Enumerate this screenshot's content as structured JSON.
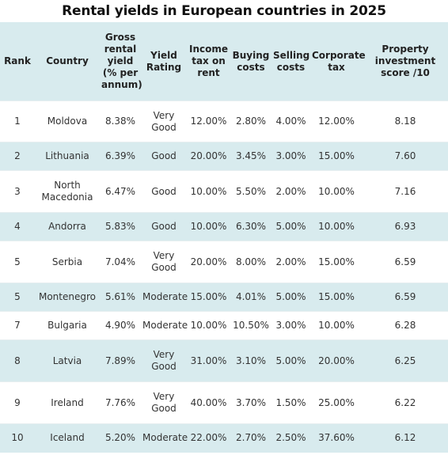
{
  "title": "Rental yields in European countries in 2025",
  "table": {
    "columns": [
      "Rank",
      "Country",
      "Gross rental yield (% per annum)",
      "Yield Rating",
      "Income tax on rent",
      "Buying costs",
      "Selling costs",
      "Corporate tax",
      "Property investment score /10"
    ],
    "rows": [
      [
        "1",
        "Moldova",
        "8.38%",
        "Very Good",
        "12.00%",
        "2.80%",
        "4.00%",
        "12.00%",
        "8.18"
      ],
      [
        "2",
        "Lithuania",
        "6.39%",
        "Good",
        "20.00%",
        "3.45%",
        "3.00%",
        "15.00%",
        "7.60"
      ],
      [
        "3",
        "North Macedonia",
        "6.47%",
        "Good",
        "10.00%",
        "5.50%",
        "2.00%",
        "10.00%",
        "7.16"
      ],
      [
        "4",
        "Andorra",
        "5.83%",
        "Good",
        "10.00%",
        "6.30%",
        "5.00%",
        "10.00%",
        "6.93"
      ],
      [
        "5",
        "Serbia",
        "7.04%",
        "Very Good",
        "20.00%",
        "8.00%",
        "2.00%",
        "15.00%",
        "6.59"
      ],
      [
        "5",
        "Montenegro",
        "5.61%",
        "Moderate",
        "15.00%",
        "4.01%",
        "5.00%",
        "15.00%",
        "6.59"
      ],
      [
        "7",
        "Bulgaria",
        "4.90%",
        "Moderate",
        "10.00%",
        "10.50%",
        "3.00%",
        "10.00%",
        "6.28"
      ],
      [
        "8",
        "Latvia",
        "7.89%",
        "Very Good",
        "31.00%",
        "3.10%",
        "5.00%",
        "20.00%",
        "6.25"
      ],
      [
        "9",
        "Ireland",
        "7.76%",
        "Very Good",
        "40.00%",
        "3.70%",
        "1.50%",
        "25.00%",
        "6.22"
      ],
      [
        "10",
        "Iceland",
        "5.20%",
        "Moderate",
        "22.00%",
        "2.70%",
        "2.50%",
        "37.60%",
        "6.12"
      ]
    ]
  },
  "colors": {
    "header_bg": "#d8ebee",
    "stripe_bg": "#d8ebee",
    "text": "#333333"
  }
}
